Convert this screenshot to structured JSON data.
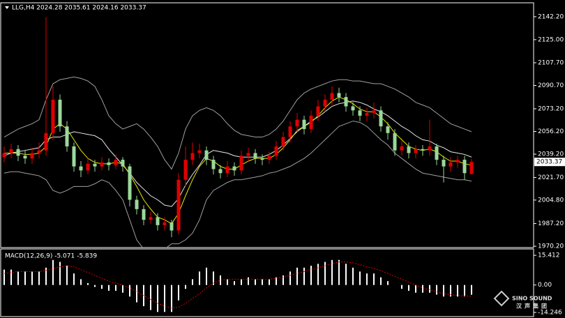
{
  "chart_data": [
    {
      "type": "candlestick",
      "title": "LLG,H4  2024.28 2035.61 2024.16 2033.37",
      "up_color": "#e00000",
      "down_color": "#9ad89a",
      "open": [
        2037,
        2040,
        2043,
        2038,
        2036,
        2040,
        2042,
        2055,
        2080,
        2060,
        2045,
        2030,
        2027,
        2032,
        2030,
        2033,
        2031,
        2035,
        2030,
        2005,
        1998,
        1990,
        1992,
        1986,
        1988,
        1982,
        2020,
        2035,
        2040,
        2042,
        2035,
        2028,
        2025,
        2030,
        2027,
        2038,
        2040,
        2036,
        2035,
        2038,
        2045,
        2052,
        2060,
        2065,
        2058,
        2068,
        2075,
        2080,
        2085,
        2082,
        2075,
        2072,
        2068,
        2070,
        2072,
        2060,
        2055,
        2042,
        2045,
        2040,
        2043,
        2042,
        2045,
        2035,
        2030,
        2033,
        2035,
        2024.28
      ],
      "high": [
        2045,
        2047,
        2046,
        2042,
        2044,
        2048,
        2142,
        2090,
        2084,
        2064,
        2048,
        2034,
        2036,
        2035,
        2037,
        2036,
        2039,
        2037,
        2032,
        2008,
        2001,
        1996,
        1995,
        1992,
        1990,
        2025,
        2045,
        2048,
        2047,
        2045,
        2038,
        2031,
        2034,
        2033,
        2042,
        2044,
        2043,
        2039,
        2041,
        2049,
        2056,
        2064,
        2070,
        2068,
        2072,
        2080,
        2084,
        2090,
        2089,
        2085,
        2078,
        2075,
        2074,
        2078,
        2075,
        2063,
        2058,
        2049,
        2048,
        2046,
        2046,
        2065,
        2047,
        2038,
        2037,
        2038,
        2038,
        2035.61
      ],
      "low": [
        2033,
        2036,
        2034,
        2032,
        2032,
        2036,
        2038,
        2050,
        2056,
        2041,
        2026,
        2022,
        2024,
        2026,
        2027,
        2027,
        2028,
        2026,
        2000,
        1994,
        1986,
        1987,
        1982,
        1982,
        1977,
        1979,
        2015,
        2031,
        2036,
        2031,
        2024,
        2021,
        2022,
        2023,
        2024,
        2034,
        2032,
        2031,
        2032,
        2035,
        2042,
        2048,
        2056,
        2054,
        2055,
        2064,
        2071,
        2076,
        2078,
        2071,
        2068,
        2064,
        2064,
        2066,
        2056,
        2050,
        2038,
        2038,
        2036,
        2036,
        2038,
        2038,
        2031,
        2018,
        2026,
        2029,
        2020,
        2024.16
      ],
      "close": [
        2040,
        2043,
        2038,
        2036,
        2040,
        2042,
        2055,
        2080,
        2060,
        2045,
        2030,
        2027,
        2032,
        2030,
        2033,
        2031,
        2035,
        2030,
        2005,
        1998,
        1990,
        1992,
        1986,
        1988,
        1982,
        2020,
        2035,
        2040,
        2042,
        2035,
        2028,
        2025,
        2030,
        2027,
        2038,
        2040,
        2036,
        2035,
        2038,
        2045,
        2052,
        2060,
        2065,
        2058,
        2068,
        2075,
        2080,
        2085,
        2082,
        2075,
        2072,
        2068,
        2070,
        2072,
        2060,
        2055,
        2042,
        2045,
        2040,
        2043,
        2042,
        2045,
        2035,
        2030,
        2033,
        2035,
        2025,
        2033.37
      ],
      "overlays": [
        {
          "color": "#a0a0a0",
          "values": [
            2052,
            2055,
            2058,
            2060,
            2062,
            2065,
            2080,
            2092,
            2095,
            2096,
            2097,
            2096,
            2094,
            2090,
            2080,
            2068,
            2062,
            2058,
            2060,
            2062,
            2058,
            2052,
            2045,
            2035,
            2028,
            2040,
            2058,
            2068,
            2072,
            2074,
            2072,
            2068,
            2062,
            2057,
            2054,
            2053,
            2052,
            2052,
            2054,
            2058,
            2064,
            2072,
            2080,
            2085,
            2088,
            2090,
            2092,
            2094,
            2095,
            2095,
            2094,
            2094,
            2093,
            2092,
            2092,
            2090,
            2088,
            2085,
            2082,
            2078,
            2076,
            2074,
            2070,
            2066,
            2062,
            2060,
            2058,
            2056
          ]
        },
        {
          "color": "#a0a0a0",
          "values": [
            2025,
            2026,
            2026,
            2025,
            2024,
            2023,
            2020,
            2012,
            2010,
            2012,
            2015,
            2015,
            2015,
            2017,
            2020,
            2018,
            2012,
            2005,
            1990,
            1975,
            1968,
            1965,
            1966,
            1968,
            1972,
            1972,
            1975,
            1980,
            1990,
            2005,
            2012,
            2015,
            2018,
            2020,
            2020,
            2021,
            2022,
            2023,
            2025,
            2026,
            2028,
            2030,
            2033,
            2036,
            2040,
            2045,
            2050,
            2055,
            2060,
            2062,
            2064,
            2063,
            2060,
            2055,
            2050,
            2046,
            2040,
            2036,
            2032,
            2028,
            2025,
            2024,
            2023,
            2022,
            2021,
            2020,
            2020,
            2019
          ]
        },
        {
          "color": "#e8e8e8",
          "values": [
            2038,
            2040,
            2041,
            2042,
            2043,
            2044,
            2050,
            2052,
            2052,
            2054,
            2056,
            2055,
            2054,
            2053,
            2050,
            2043,
            2037,
            2031,
            2025,
            2018,
            2013,
            2008,
            2005,
            2001,
            2000,
            2006,
            2016,
            2024,
            2031,
            2039,
            2042,
            2041,
            2040,
            2038,
            2037,
            2037,
            2037,
            2037,
            2039,
            2042,
            2046,
            2051,
            2056,
            2060,
            2064,
            2067,
            2071,
            2075,
            2077,
            2078,
            2079,
            2078,
            2076,
            2073,
            2071,
            2068,
            2064,
            2060,
            2057,
            2053,
            2050,
            2049,
            2046,
            2044,
            2041,
            2040,
            2039,
            2037
          ]
        },
        {
          "color": "#e8e800",
          "values": [
            2040,
            2040,
            2040,
            2039,
            2039,
            2040,
            2045,
            2058,
            2062,
            2058,
            2050,
            2042,
            2036,
            2033,
            2032,
            2032,
            2033,
            2032,
            2024,
            2015,
            2005,
            1998,
            1992,
            1990,
            1987,
            1995,
            2008,
            2020,
            2030,
            2036,
            2034,
            2030,
            2028,
            2028,
            2031,
            2034,
            2036,
            2036,
            2036,
            2039,
            2044,
            2050,
            2057,
            2060,
            2063,
            2068,
            2074,
            2079,
            2082,
            2080,
            2077,
            2073,
            2071,
            2071,
            2067,
            2062,
            2055,
            2050,
            2045,
            2043,
            2042,
            2043,
            2041,
            2037,
            2034,
            2034,
            2032,
            2031
          ]
        }
      ],
      "ylim": [
        1969.2,
        2152.1
      ],
      "yticks": [
        {
          "value": 2142.2,
          "label": "2142.20"
        },
        {
          "value": 2125,
          "label": "2125.00"
        },
        {
          "value": 2107.7,
          "label": "2107.70"
        },
        {
          "value": 2090.7,
          "label": "2090.70"
        },
        {
          "value": 2073.2,
          "label": "2073.20"
        },
        {
          "value": 2056.2,
          "label": "2056.20"
        },
        {
          "value": 2039.2,
          "label": "2039.20"
        },
        {
          "value": 2021.7,
          "label": "2021.70"
        },
        {
          "value": 2004.8,
          "label": "2004.80"
        },
        {
          "value": 1987.2,
          "label": "1987.20"
        },
        {
          "value": 1970.2,
          "label": "1970.20"
        }
      ],
      "last_price": 2033.37
    },
    {
      "type": "macd",
      "title": "MACD(12,26,9) -5.071 -5.839",
      "histogram": {
        "color": "#ffffff",
        "values": [
          8,
          8,
          7,
          7,
          7,
          7,
          9,
          13,
          12,
          10,
          6,
          3,
          1,
          -1,
          -2,
          -3,
          -3,
          -4,
          -6,
          -9,
          -11,
          -13,
          -14,
          -14,
          -14,
          -8,
          -2,
          3,
          7,
          9,
          7,
          5,
          3,
          2,
          3,
          4,
          3,
          3,
          3,
          4,
          5,
          7,
          9,
          9,
          10,
          11,
          12,
          13,
          13,
          11,
          9,
          7,
          6,
          6,
          4,
          2,
          0,
          -2,
          -3,
          -4,
          -4,
          -4,
          -5,
          -6,
          -6,
          -6,
          -6,
          -5.071
        ]
      },
      "signal": {
        "color": "#e00000",
        "values": [
          6,
          6.5,
          7,
          7,
          7,
          7,
          7.5,
          8.5,
          9.5,
          10,
          9.5,
          8,
          6.5,
          5,
          3.5,
          2,
          1,
          0,
          -1.5,
          -3.5,
          -5.5,
          -7.5,
          -9.5,
          -11,
          -12,
          -11.5,
          -9.5,
          -7,
          -4.5,
          -1.5,
          1,
          2.5,
          3,
          3,
          3,
          3,
          3,
          3,
          3,
          3.5,
          4,
          5,
          6,
          7,
          8,
          9,
          10,
          11,
          12,
          12,
          11.5,
          10.5,
          9.5,
          8.5,
          7.5,
          6,
          4.5,
          3,
          1.5,
          0,
          -1.5,
          -2.5,
          -3.5,
          -4.5,
          -5,
          -5.5,
          -5.7,
          -5.839
        ]
      },
      "ylim": [
        -16.05,
        18.35
      ],
      "yticks": [
        15.412,
        {
          "value": 0,
          "label": "0.00"
        },
        -14.246
      ]
    }
  ],
  "watermark": {
    "name": "SINO SOUND",
    "subtitle": "汉声集团"
  }
}
